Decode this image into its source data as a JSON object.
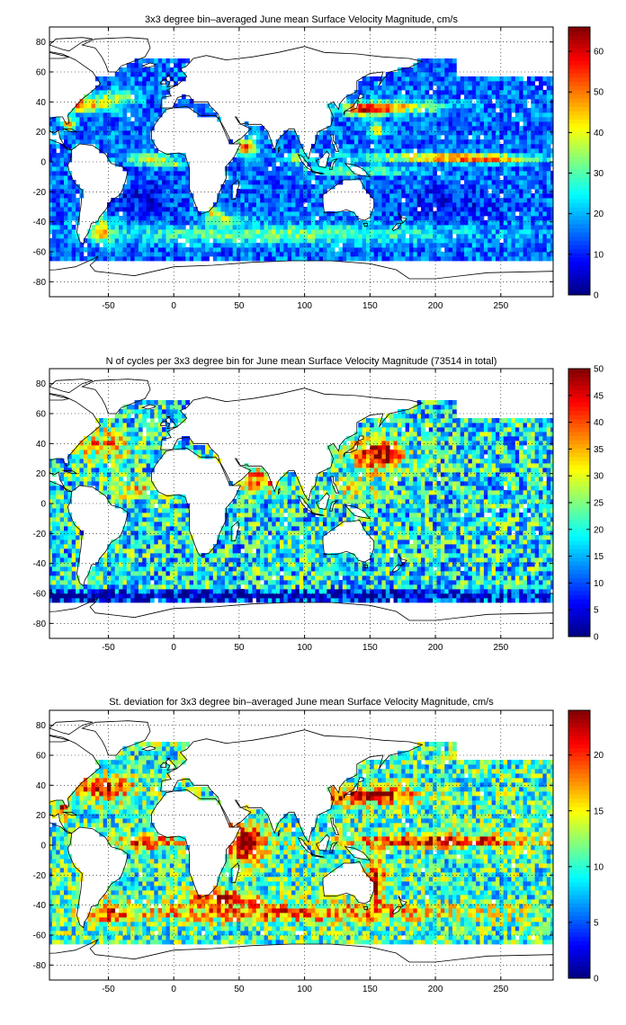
{
  "chart_data": [
    {
      "type": "heatmap",
      "title": "3x3 degree bin–averaged June mean Surface Velocity Magnitude, cm/s",
      "xlabel": "",
      "ylabel": "",
      "xlim": [
        -95,
        290
      ],
      "ylim": [
        -90,
        90
      ],
      "x_ticks": [
        -50,
        0,
        50,
        100,
        150,
        200,
        250
      ],
      "y_ticks": [
        80,
        60,
        40,
        20,
        0,
        -20,
        -40,
        -60,
        -80
      ],
      "grid": "dotted",
      "bin_size_deg": 3,
      "colorbar": {
        "range": [
          0,
          66
        ],
        "ticks": [
          0,
          10,
          20,
          30,
          40,
          50,
          60
        ],
        "colormap": "jet",
        "placement": "right"
      },
      "field": "velocity"
    },
    {
      "type": "heatmap",
      "title": "N of cycles per 3x3 degree bin for June mean Surface Velocity Magnitude (73514 in total)",
      "xlabel": "",
      "ylabel": "",
      "xlim": [
        -95,
        290
      ],
      "ylim": [
        -90,
        90
      ],
      "x_ticks": [
        -50,
        0,
        50,
        100,
        150,
        200,
        250
      ],
      "y_ticks": [
        80,
        60,
        40,
        20,
        0,
        -20,
        -40,
        -60,
        -80
      ],
      "grid": "dotted",
      "bin_size_deg": 3,
      "total_cycles": 73514,
      "colorbar": {
        "range": [
          0,
          50
        ],
        "ticks": [
          0,
          5,
          10,
          15,
          20,
          25,
          30,
          35,
          40,
          45,
          50
        ],
        "colormap": "jet",
        "placement": "right"
      },
      "field": "count"
    },
    {
      "type": "heatmap",
      "title": "St. deviation for 3x3 degree bin–averaged June mean Surface Velocity Magnitude, cm/s",
      "xlabel": "",
      "ylabel": "",
      "xlim": [
        -95,
        290
      ],
      "ylim": [
        -90,
        90
      ],
      "x_ticks": [
        -50,
        0,
        50,
        100,
        150,
        200,
        250
      ],
      "y_ticks": [
        80,
        60,
        40,
        20,
        0,
        -20,
        -40,
        -60,
        -80
      ],
      "grid": "dotted",
      "bin_size_deg": 3,
      "colorbar": {
        "range": [
          0,
          24
        ],
        "ticks": [
          0,
          5,
          10,
          15,
          20
        ],
        "colormap": "jet",
        "placement": "right"
      },
      "field": "stdev"
    }
  ]
}
